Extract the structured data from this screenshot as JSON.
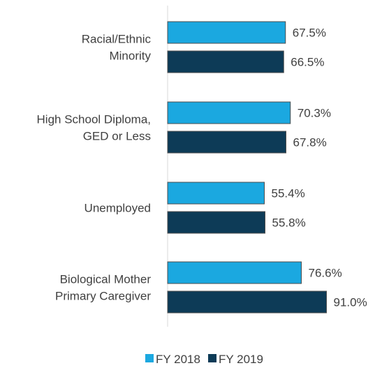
{
  "chart_data": {
    "type": "bar",
    "orientation": "horizontal",
    "categories": [
      [
        "Racial/Ethnic",
        "Minority"
      ],
      [
        "High School Diploma,",
        "GED or Less"
      ],
      [
        "Unemployed"
      ],
      [
        "Biological Mother",
        "Primary Caregiver"
      ]
    ],
    "series": [
      {
        "name": "FY 2018",
        "color": "#1BA8E0",
        "values": [
          67.5,
          70.3,
          55.4,
          76.6
        ],
        "labels": [
          "67.5%",
          "70.3%",
          "55.4%",
          "76.6%"
        ]
      },
      {
        "name": "FY 2019",
        "color": "#0D3B57",
        "values": [
          66.5,
          67.8,
          55.8,
          91.0
        ],
        "labels": [
          "66.5%",
          "67.8%",
          "55.8%",
          "91.0%"
        ]
      }
    ],
    "value_unit": "%",
    "x_axis_visible": false,
    "grid": false,
    "legend_position": "bottom"
  }
}
